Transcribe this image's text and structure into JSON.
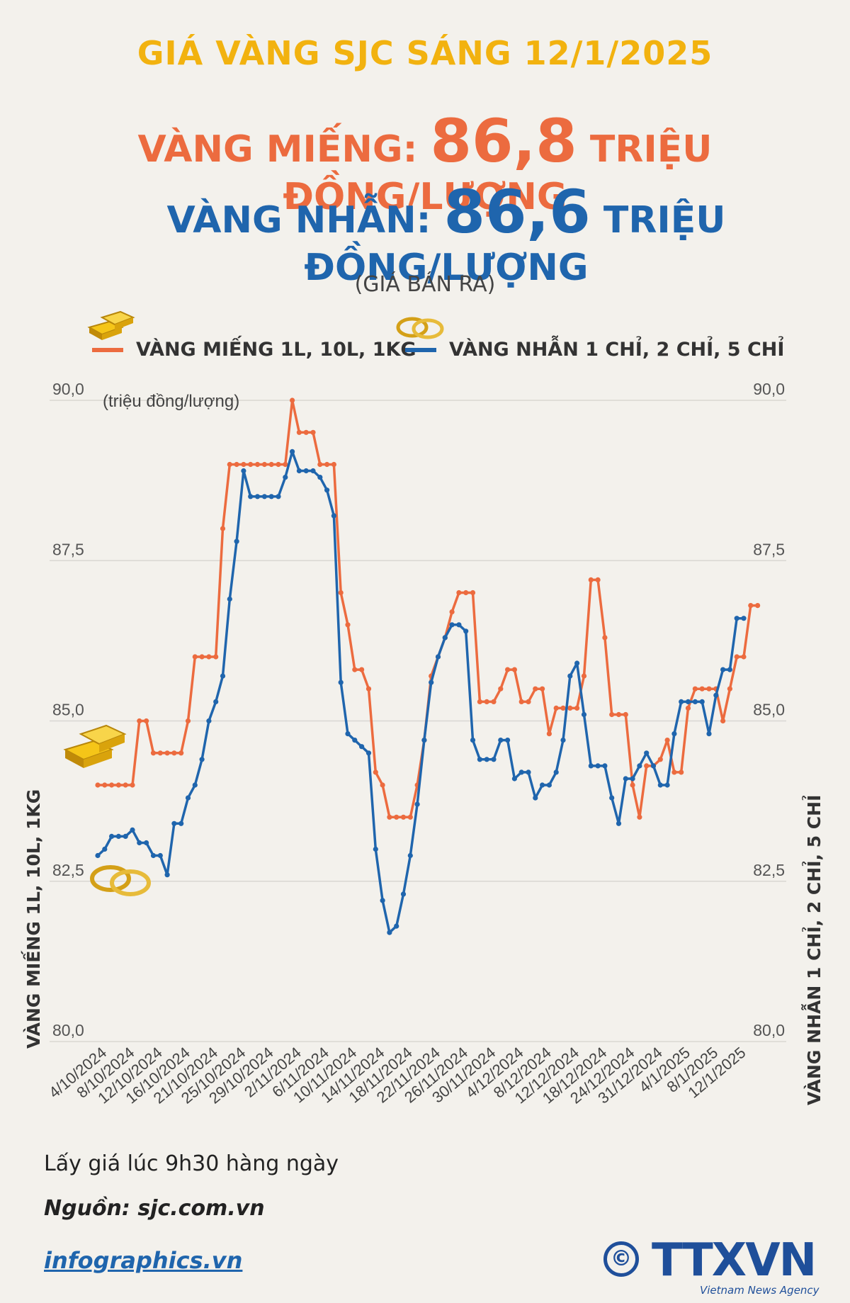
{
  "header": {
    "title": "GIÁ VÀNG SJC SÁNG 12/1/2025",
    "mieng_label": "VÀNG MIẾNG:",
    "mieng_value": "86,8",
    "mieng_unit": "TRIỆU ĐỒNG/LƯỢNG",
    "nhan_label": "VÀNG NHẪN:",
    "nhan_value": "86,6",
    "nhan_unit": "TRIỆU ĐỒNG/LƯỢNG",
    "subtitle": "(GIÁ BÁN RA)"
  },
  "legend": {
    "mieng": "VÀNG MIẾNG 1L, 10L, 1KG",
    "nhan": "VÀNG NHẪN 1 CHỈ, 2 CHỈ, 5 CHỈ"
  },
  "colors": {
    "mieng": "#ec6b3f",
    "nhan": "#1f65ad",
    "title": "#f2b20f"
  },
  "chart_data": {
    "type": "line",
    "unit_label": "(triệu đồng/lượng)",
    "ylabel_left": "VÀNG MIẾNG 1L, 10L, 1KG",
    "ylabel_right": "VÀNG NHẪN 1 CHỈ, 2 CHỈ, 5 CHỈ",
    "ylim": [
      80,
      90
    ],
    "yticks": [
      "80,0",
      "82,5",
      "85,0",
      "87,5",
      "90,0"
    ],
    "ytick_values": [
      80,
      82.5,
      85,
      87.5,
      90
    ],
    "xtick_labels": [
      "4/10/2024",
      "8/10/2024",
      "12/10/2024",
      "16/10/2024",
      "21/10/2024",
      "25/10/2024",
      "29/10/2024",
      "2/11/2024",
      "6/11/2024",
      "10/11/2024",
      "14/11/2024",
      "18/11/2024",
      "22/11/2024",
      "26/11/2024",
      "30/11/2024",
      "4/12/2024",
      "8/12/2024",
      "12/12/2024",
      "18/12/2024",
      "24/12/2024",
      "31/12/2024",
      "4/1/2025",
      "8/1/2025",
      "12/1/2025"
    ],
    "xtick_positions": [
      0,
      4,
      8,
      12,
      16,
      20,
      24,
      28,
      32,
      36,
      40,
      44,
      48,
      52,
      56,
      60,
      64,
      68,
      72,
      76,
      80,
      84,
      88,
      92
    ],
    "n_points": 94,
    "series": [
      {
        "name": "VÀNG MIẾNG 1L, 10L, 1KG",
        "color": "#ec6b3f",
        "values": [
          84,
          84,
          84,
          84,
          84,
          84,
          85,
          85,
          84.5,
          84.5,
          84.5,
          84.5,
          84.5,
          85,
          86,
          86,
          86,
          86,
          88,
          89,
          89,
          89,
          89,
          89,
          89,
          89,
          89,
          89,
          90,
          89.5,
          89.5,
          89.5,
          89,
          89,
          89,
          87,
          86.5,
          85.8,
          85.8,
          85.5,
          84.2,
          84,
          83.5,
          83.5,
          83.5,
          83.5,
          84,
          84.7,
          85.7,
          86,
          86.3,
          86.7,
          87,
          87,
          87,
          85.3,
          85.3,
          85.3,
          85.5,
          85.8,
          85.8,
          85.3,
          85.3,
          85.5,
          85.5,
          84.8,
          85.2,
          85.2,
          85.2,
          85.2,
          85.7,
          87.2,
          87.2,
          86.3,
          85.1,
          85.1,
          85.1,
          84,
          83.5,
          84.3,
          84.3,
          84.4,
          84.7,
          84.2,
          84.2,
          85.2,
          85.5,
          85.5,
          85.5,
          85.5,
          85,
          85.5,
          86,
          86,
          86.8,
          86.8
        ]
      },
      {
        "name": "VÀNG NHẪN 1 CHỈ, 2 CHỈ, 5 CHỈ",
        "color": "#1f65ad",
        "values": [
          82.9,
          83,
          83.2,
          83.2,
          83.2,
          83.3,
          83.1,
          83.1,
          82.9,
          82.9,
          82.6,
          83.4,
          83.4,
          83.8,
          84,
          84.4,
          85,
          85.3,
          85.7,
          86.9,
          87.8,
          88.9,
          88.5,
          88.5,
          88.5,
          88.5,
          88.5,
          88.8,
          89.2,
          88.9,
          88.9,
          88.9,
          88.8,
          88.6,
          88.2,
          85.6,
          84.8,
          84.7,
          84.6,
          84.5,
          83,
          82.2,
          81.7,
          81.8,
          82.3,
          82.9,
          83.7,
          84.7,
          85.6,
          86,
          86.3,
          86.5,
          86.5,
          86.4,
          84.7,
          84.4,
          84.4,
          84.4,
          84.7,
          84.7,
          84.1,
          84.2,
          84.2,
          83.8,
          84,
          84,
          84.2,
          84.7,
          85.7,
          85.9,
          85.1,
          84.3,
          84.3,
          84.3,
          83.8,
          83.4,
          84.1,
          84.1,
          84.3,
          84.5,
          84.3,
          84,
          84,
          84.8,
          85.3,
          85.3,
          85.3,
          85.3,
          84.8,
          85.4,
          85.8,
          85.8,
          86.6,
          86.6
        ]
      }
    ]
  },
  "footer": {
    "note": "Lấy giá lúc 9h30 hàng ngày",
    "source": "Nguồn: sjc.com.vn",
    "site": "infographics.vn",
    "copyright_symbol": "©",
    "agency_logo": "TTXVN",
    "agency_sub": "Vietnam News Agency"
  }
}
